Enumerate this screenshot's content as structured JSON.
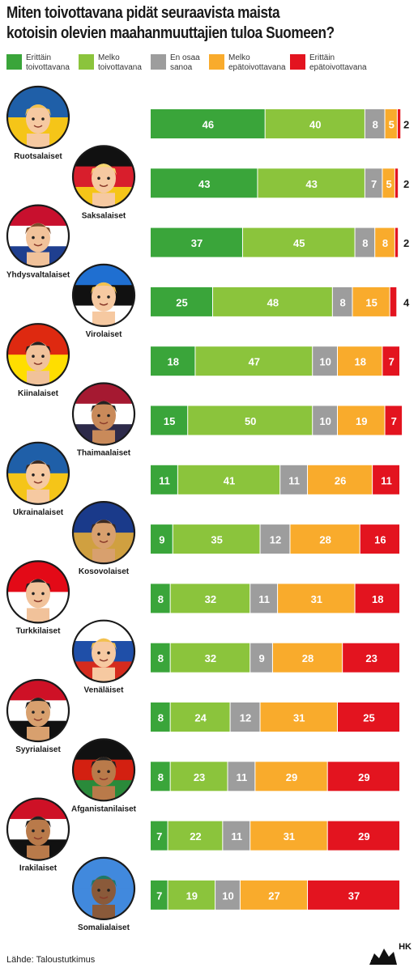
{
  "title_lines": [
    "Miten toivottavana pidät seuraavista maista",
    "kotoisin olevien maahanmuuttajien tuloa Suomeen?"
  ],
  "source": "Lähde: Taloustutkimus",
  "logo_text": "HK",
  "colors": {
    "Erittäin toivottavana": "#3aa53a",
    "Melko toivottavana": "#8bc43c",
    "En osaa sanoa": "#9d9d9d",
    "Melko epätoivottavana": "#f9ab2c",
    "Erittäin epätoivottavana": "#e3141f"
  },
  "legend": [
    {
      "line1": "Erittäin",
      "line2": "toivottavana"
    },
    {
      "line1": "Melko",
      "line2": "toivottavana"
    },
    {
      "line1": "En osaa",
      "line2": "sanoa"
    },
    {
      "line1": "Melko",
      "line2": "epätoivottavana"
    },
    {
      "line1": "Erittäin",
      "line2": "epätoivottavana"
    }
  ],
  "chart_data": {
    "type": "bar",
    "stacked": true,
    "orientation": "horizontal",
    "unit": "%",
    "categories": [
      "Ruotsalaiset",
      "Saksalaiset",
      "Yhdysvaltalaiset",
      "Virolaiset",
      "Kiinalaiset",
      "Thaimaalaiset",
      "Ukrainalaiset",
      "Kosovolaiset",
      "Turkkilaiset",
      "Venäläiset",
      "Syyrialaiset",
      "Afganistanilaiset",
      "Irakilaiset",
      "Somalialaiset"
    ],
    "series": [
      {
        "name": "Erittäin toivottavana",
        "values": [
          46,
          43,
          37,
          25,
          18,
          15,
          11,
          9,
          8,
          8,
          8,
          8,
          7,
          7
        ]
      },
      {
        "name": "Melko toivottavana",
        "values": [
          40,
          43,
          45,
          48,
          47,
          50,
          41,
          35,
          32,
          32,
          24,
          23,
          22,
          19
        ]
      },
      {
        "name": "En osaa sanoa",
        "values": [
          8,
          7,
          8,
          8,
          10,
          10,
          11,
          12,
          11,
          9,
          12,
          11,
          11,
          10
        ]
      },
      {
        "name": "Melko epätoivottavana",
        "values": [
          5,
          5,
          8,
          15,
          18,
          19,
          26,
          28,
          31,
          28,
          31,
          29,
          31,
          27
        ]
      },
      {
        "name": "Erittäin epätoivottavana",
        "values": [
          2,
          2,
          2,
          4,
          7,
          7,
          11,
          16,
          18,
          23,
          25,
          29,
          29,
          37
        ]
      }
    ],
    "xlim": [
      0,
      100
    ],
    "grid": false,
    "legend_position": "top"
  },
  "flags": [
    {
      "colors": [
        "#1f5fa8",
        "#f5c518"
      ],
      "skin": "#f6c9a1",
      "hair": "#f2c14e"
    },
    {
      "colors": [
        "#111111",
        "#d81e2c",
        "#f5c518"
      ],
      "skin": "#f6c9a1",
      "hair": "#f5d76e"
    },
    {
      "colors": [
        "#c8102e",
        "#ffffff",
        "#1f3f8f"
      ],
      "skin": "#f1c29a",
      "hair": "#7a4a2a"
    },
    {
      "colors": [
        "#1f6fd1",
        "#111111",
        "#ffffff"
      ],
      "skin": "#f6c9a1",
      "hair": "#f2c14e"
    },
    {
      "colors": [
        "#de2910",
        "#ffde00"
      ],
      "skin": "#f1c29a",
      "hair": "#222222"
    },
    {
      "colors": [
        "#a51931",
        "#ffffff",
        "#2d2a4a"
      ],
      "skin": "#c98a5a",
      "hair": "#222222"
    },
    {
      "colors": [
        "#1f5fa8",
        "#f5c518"
      ],
      "skin": "#f6c9a1",
      "hair": "#3a2a22"
    },
    {
      "colors": [
        "#1a3a8a",
        "#d0a040"
      ],
      "skin": "#d8a06e",
      "hair": "#3a2a22"
    },
    {
      "colors": [
        "#e30a17",
        "#ffffff"
      ],
      "skin": "#f1c29a",
      "hair": "#222222"
    },
    {
      "colors": [
        "#ffffff",
        "#1f4fa8",
        "#d52b1e"
      ],
      "skin": "#f6c9a1",
      "hair": "#f2c14e"
    },
    {
      "colors": [
        "#ce1126",
        "#ffffff",
        "#111111"
      ],
      "skin": "#d8a06e",
      "hair": "#222222"
    },
    {
      "colors": [
        "#111111",
        "#d32011",
        "#2a8a3a"
      ],
      "skin": "#b97a4a",
      "hair": "#222222"
    },
    {
      "colors": [
        "#ce1126",
        "#ffffff",
        "#111111"
      ],
      "skin": "#b97a4a",
      "hair": "#222222"
    },
    {
      "colors": [
        "#4189dd",
        "#4189dd"
      ],
      "skin": "#8a5a3a",
      "hair": "#1a7a6a"
    }
  ]
}
